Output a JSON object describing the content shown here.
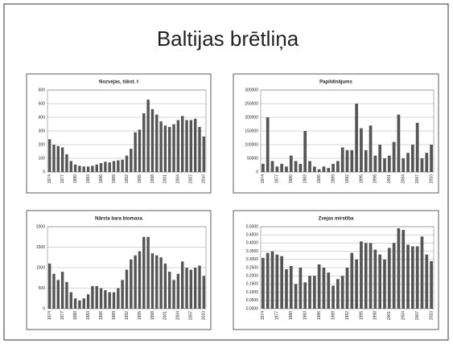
{
  "title": "Baltijas brētliņa",
  "chart_data": [
    {
      "type": "bar",
      "title": "Nozvejas, tūkst. t",
      "color": "#555555",
      "grid": true,
      "categories": [
        "1974",
        null,
        null,
        "1977",
        null,
        null,
        "1980",
        null,
        null,
        "1983",
        null,
        null,
        "1986",
        null,
        null,
        "1989",
        null,
        null,
        "1992",
        null,
        null,
        "1995",
        null,
        null,
        "1998",
        null,
        null,
        "2001",
        null,
        null,
        "2004",
        null,
        null,
        "2007",
        null,
        null,
        "2010"
      ],
      "values": [
        240,
        200,
        190,
        180,
        130,
        80,
        55,
        45,
        40,
        40,
        45,
        55,
        65,
        75,
        70,
        80,
        85,
        90,
        120,
        170,
        290,
        310,
        430,
        530,
        460,
        420,
        370,
        340,
        330,
        350,
        380,
        410,
        380,
        380,
        390,
        330,
        260
      ],
      "ylim": [
        0,
        600
      ],
      "yticks": [
        0,
        100,
        200,
        300,
        400,
        500,
        600
      ]
    },
    {
      "type": "bar",
      "title": "Papildinājums",
      "color": "#555555",
      "grid": true,
      "categories": [
        "1974",
        null,
        null,
        "1977",
        null,
        null,
        "1980",
        null,
        null,
        "1983",
        null,
        null,
        "1986",
        null,
        null,
        "1989",
        null,
        null,
        "1992",
        null,
        null,
        "1995",
        null,
        null,
        "1998",
        null,
        null,
        "2001",
        null,
        null,
        "2004",
        null,
        null,
        "2007",
        null,
        null,
        "2010"
      ],
      "values": [
        30000,
        200000,
        40000,
        20000,
        30000,
        20000,
        60000,
        40000,
        30000,
        150000,
        40000,
        20000,
        10000,
        20000,
        15000,
        30000,
        40000,
        90000,
        80000,
        80000,
        250000,
        160000,
        80000,
        170000,
        60000,
        100000,
        50000,
        60000,
        110000,
        210000,
        50000,
        70000,
        100000,
        180000,
        50000,
        70000,
        100000
      ],
      "ylim": [
        0,
        300000
      ],
      "yticks": [
        0,
        50000,
        100000,
        150000,
        200000,
        250000,
        300000
      ]
    },
    {
      "type": "bar",
      "title": "Nārsta bara biomasa",
      "color": "#555555",
      "grid": true,
      "categories": [
        "1974",
        null,
        null,
        "1977",
        null,
        null,
        "1980",
        null,
        null,
        "1983",
        null,
        null,
        "1986",
        null,
        null,
        "1989",
        null,
        null,
        "1992",
        null,
        null,
        "1995",
        null,
        null,
        "1998",
        null,
        null,
        "2001",
        null,
        null,
        "2004",
        null,
        null,
        "2007",
        null,
        null,
        "2010"
      ],
      "values": [
        1100,
        850,
        700,
        900,
        650,
        400,
        250,
        200,
        250,
        350,
        550,
        550,
        500,
        450,
        400,
        400,
        500,
        700,
        950,
        1200,
        1300,
        1400,
        1750,
        1750,
        1350,
        1300,
        1250,
        1100,
        900,
        700,
        850,
        1150,
        1000,
        950,
        1000,
        1050,
        800
      ],
      "ylim": [
        0,
        2000
      ],
      "yticks": [
        0,
        500,
        1000,
        1500,
        2000
      ]
    },
    {
      "type": "bar",
      "title": "Zvejas mirstība",
      "color": "#555555",
      "grid": true,
      "categories": [
        "1974",
        null,
        null,
        "1977",
        null,
        null,
        "1980",
        null,
        null,
        "1983",
        null,
        null,
        "1986",
        null,
        null,
        "1989",
        null,
        null,
        "1992",
        null,
        null,
        "1995",
        null,
        null,
        "1998",
        null,
        null,
        "2001",
        null,
        null,
        "2004",
        null,
        null,
        "2007",
        null,
        null,
        "2010"
      ],
      "values": [
        0.31,
        0.34,
        0.35,
        0.33,
        0.32,
        0.24,
        0.26,
        0.15,
        0.25,
        0.16,
        0.2,
        0.2,
        0.27,
        0.25,
        0.22,
        0.14,
        0.18,
        0.2,
        0.25,
        0.34,
        0.3,
        0.41,
        0.4,
        0.4,
        0.36,
        0.33,
        0.3,
        0.37,
        0.4,
        0.49,
        0.48,
        0.39,
        0.38,
        0.38,
        0.44,
        0.33,
        0.29
      ],
      "ylim": [
        0,
        0.5
      ],
      "yticks": [
        {
          "value": 0,
          "label": "0.0000"
        },
        {
          "value": 0.05,
          "label": "0.0500"
        },
        {
          "value": 0.1,
          "label": "0.1000"
        },
        {
          "value": 0.15,
          "label": "0.1500"
        },
        {
          "value": 0.2,
          "label": "0.2000"
        },
        {
          "value": 0.25,
          "label": "0.2500"
        },
        {
          "value": 0.3,
          "label": "0.3000"
        },
        {
          "value": 0.35,
          "label": "0.3500"
        },
        {
          "value": 0.4,
          "label": "0.4000"
        },
        {
          "value": 0.45,
          "label": "0.4500"
        },
        {
          "value": 0.5,
          "label": "0.5000"
        }
      ]
    }
  ]
}
